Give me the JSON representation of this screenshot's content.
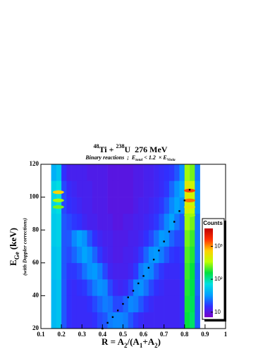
{
  "chart_data": {
    "type": "heatmap",
    "title": {
      "mass1": "48",
      "nucleus1": "Ti + ",
      "mass2": "238",
      "nucleus2": "U  276 MeV"
    },
    "subtitle": {
      "text1": "Binary reactions  ;  E",
      "sub1": "total",
      "text2": " < 1.2  × E",
      "sub2": "Viola"
    },
    "x_label": {
      "text1": "R = A",
      "sub1": "2",
      "text2": "/(A",
      "sub2": "1",
      "text3": "+A",
      "sub3": "2",
      "text4": ")"
    },
    "y_label": {
      "text1": "E",
      "sub1": "Ge",
      "text2": " (keV)",
      "note": "(with Doppler corrections)"
    },
    "xlim": [
      0.1,
      1
    ],
    "xticks": [
      0.1,
      0.2,
      0.3,
      0.4,
      0.5,
      0.6,
      0.7,
      0.8,
      0.9,
      1
    ],
    "ylim": [
      20,
      120
    ],
    "yticks": [
      20,
      40,
      60,
      80,
      100,
      120
    ],
    "xbins": [
      0.15,
      0.175,
      0.2,
      0.225,
      0.25,
      0.275,
      0.3,
      0.325,
      0.35,
      0.375,
      0.4,
      0.425,
      0.45,
      0.475,
      0.5,
      0.525,
      0.55,
      0.575,
      0.6,
      0.625,
      0.65,
      0.675,
      0.7,
      0.725,
      0.75,
      0.775,
      0.8,
      0.825,
      0.85,
      0.875
    ],
    "ybins": [
      20,
      30,
      40,
      50,
      60,
      70,
      80,
      90,
      100,
      110,
      120
    ],
    "counts": [
      [
        45,
        50,
        20,
        15,
        14,
        14,
        14,
        14,
        15,
        18,
        20,
        26,
        28,
        28,
        26,
        20,
        16,
        14,
        13,
        13,
        13,
        13,
        13,
        13,
        13,
        14,
        160,
        130,
        20
      ],
      [
        45,
        50,
        20,
        15,
        14,
        14,
        14,
        15,
        18,
        22,
        26,
        24,
        18,
        18,
        22,
        28,
        26,
        20,
        16,
        14,
        13,
        13,
        13,
        13,
        13,
        14,
        170,
        140,
        20
      ],
      [
        45,
        50,
        20,
        15,
        14,
        15,
        16,
        20,
        26,
        30,
        28,
        18,
        14,
        13,
        14,
        18,
        28,
        30,
        24,
        18,
        15,
        14,
        13,
        13,
        13,
        14,
        180,
        150,
        22
      ],
      [
        50,
        55,
        20,
        16,
        16,
        18,
        24,
        30,
        32,
        26,
        18,
        13,
        12,
        12,
        12,
        13,
        16,
        25,
        30,
        28,
        20,
        16,
        14,
        14,
        14,
        15,
        200,
        160,
        22
      ],
      [
        50,
        55,
        20,
        18,
        22,
        28,
        35,
        30,
        22,
        16,
        13,
        12,
        11,
        11,
        12,
        12,
        13,
        16,
        22,
        30,
        32,
        26,
        20,
        16,
        15,
        16,
        220,
        180,
        25
      ],
      [
        55,
        60,
        20,
        20,
        28,
        35,
        30,
        20,
        15,
        13,
        12,
        12,
        11,
        11,
        11,
        12,
        12,
        13,
        15,
        18,
        24,
        32,
        30,
        22,
        18,
        18,
        250,
        200,
        25
      ],
      [
        55,
        60,
        20,
        18,
        16,
        15,
        13,
        12,
        12,
        11,
        11,
        11,
        10,
        10,
        11,
        11,
        12,
        12,
        13,
        14,
        16,
        20,
        28,
        35,
        25,
        20,
        300,
        250,
        25
      ],
      [
        60,
        70,
        18,
        15,
        14,
        13,
        12,
        12,
        11,
        11,
        11,
        10,
        10,
        10,
        10,
        10,
        11,
        12,
        12,
        13,
        14,
        16,
        20,
        28,
        35,
        30,
        450,
        350,
        30
      ],
      [
        60,
        70,
        18,
        14,
        13,
        12,
        12,
        12,
        11,
        11,
        11,
        10,
        10,
        10,
        10,
        10,
        11,
        11,
        12,
        12,
        13,
        14,
        16,
        22,
        30,
        40,
        500,
        400,
        30
      ],
      [
        40,
        50,
        15,
        12,
        12,
        12,
        12,
        11,
        11,
        11,
        11,
        10,
        10,
        10,
        10,
        10,
        11,
        11,
        12,
        12,
        13,
        14,
        15,
        16,
        20,
        30,
        300,
        250,
        25
      ]
    ],
    "peaks": [
      {
        "x": 0.185,
        "y": 103,
        "counts": 700
      },
      {
        "x": 0.185,
        "y": 98,
        "counts": 300
      },
      {
        "x": 0.185,
        "y": 94,
        "counts": 250
      },
      {
        "x": 0.825,
        "y": 104,
        "counts": 1500
      },
      {
        "x": 0.825,
        "y": 98,
        "counts": 1200
      },
      {
        "x": 0.825,
        "y": 94,
        "counts": 500
      },
      {
        "x": 0.825,
        "y": 89,
        "counts": 300
      }
    ],
    "curve": {
      "color": "#000000",
      "x": [
        0.4,
        0.425,
        0.45,
        0.475,
        0.5,
        0.525,
        0.55,
        0.575,
        0.6,
        0.625,
        0.65,
        0.675,
        0.7,
        0.725,
        0.75,
        0.775,
        0.8,
        0.825
      ],
      "y": [
        20,
        23.5,
        27,
        31,
        35,
        39,
        43,
        47.5,
        52,
        57,
        62,
        67.5,
        73,
        79,
        85,
        91.5,
        98,
        104.5
      ]
    },
    "colorbar": {
      "title": "Counts",
      "log": true,
      "zlim": [
        7,
        3500
      ],
      "zticks": [
        10,
        {
          "value": 100,
          "label": "10²"
        },
        {
          "value": 1000,
          "label": "10³"
        }
      ],
      "palette": [
        "#7a00c8",
        "#3030ff",
        "#00a0ff",
        "#00e0e0",
        "#00e040",
        "#c0ff00",
        "#ffd000",
        "#ff3000",
        "#c00000"
      ]
    }
  }
}
